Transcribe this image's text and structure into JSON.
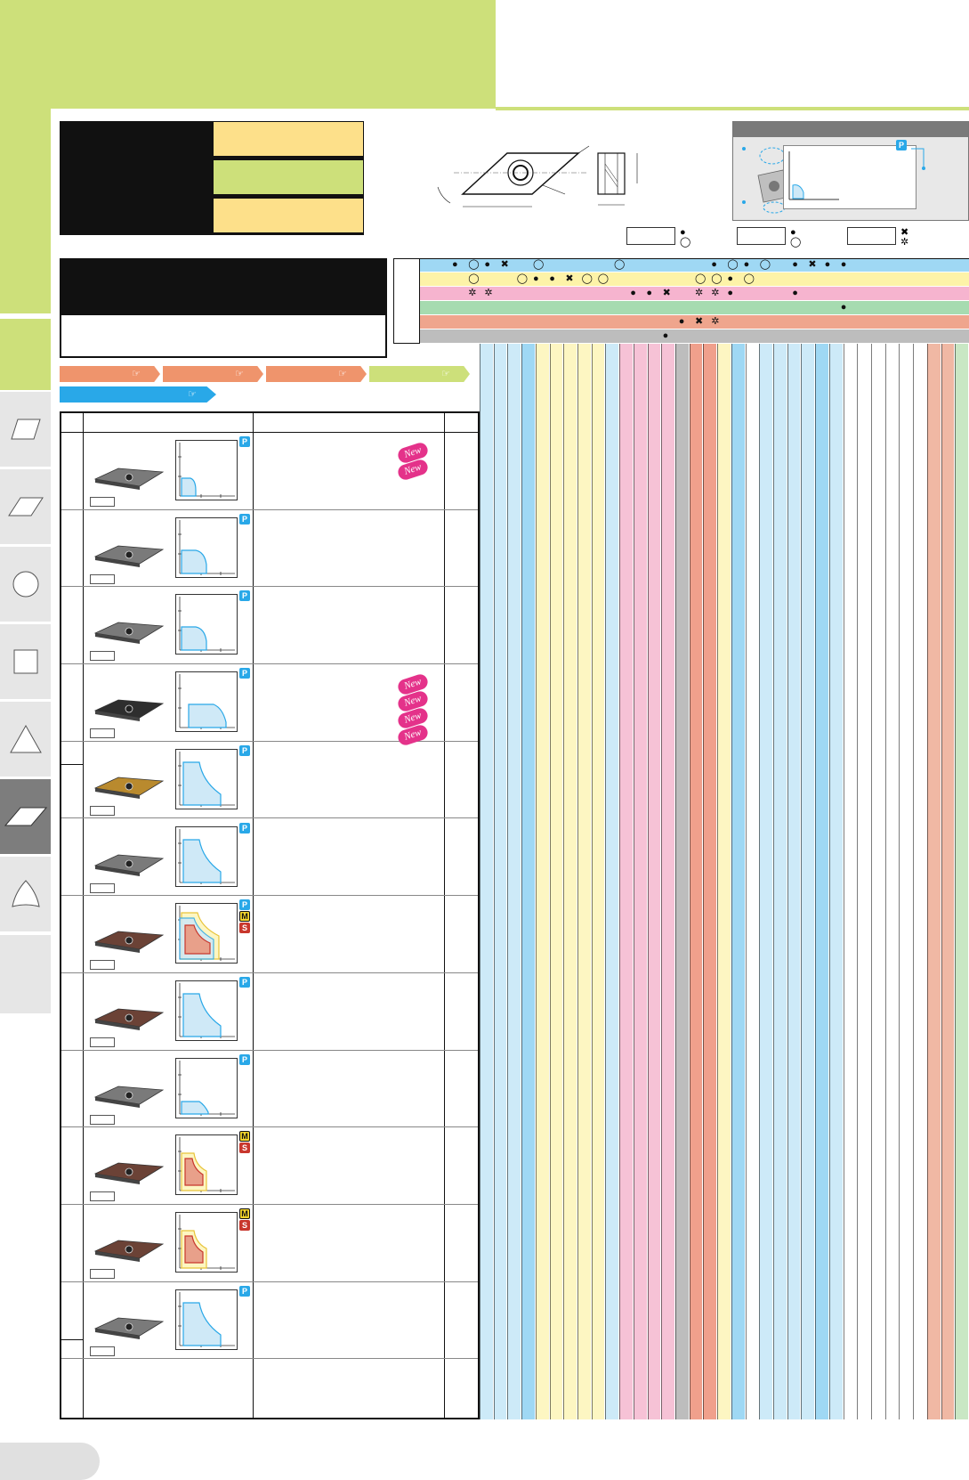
{
  "page": {
    "badges": {
      "p": "P",
      "m": "M",
      "s": "S"
    },
    "new_label": "New",
    "colors": {
      "banner_green": "#cde07a",
      "spec_yellow": "#fde08a",
      "p_blue": "#29a8e8",
      "m_yellow": "#f2d42a",
      "s_red": "#c8372d",
      "new_pink": "#e4328a",
      "arrow_orange": "#ef946c"
    },
    "side_tabs": [
      {
        "name": "parallelogram-tab",
        "icon": "parallelogram-icon",
        "active": false
      },
      {
        "name": "rhombus-80-tab",
        "icon": "rhombus-icon",
        "active": false
      },
      {
        "name": "round-tab",
        "icon": "circle-icon",
        "active": false
      },
      {
        "name": "square-tab",
        "icon": "square-icon",
        "active": false
      },
      {
        "name": "triangle-tab",
        "icon": "triangle-icon",
        "active": false
      },
      {
        "name": "rhombus-35-tab",
        "icon": "rhombus-35-icon",
        "active": true
      },
      {
        "name": "trigon-tab",
        "icon": "trigon-icon",
        "active": false
      }
    ],
    "grid_symbols": [
      [
        "●",
        "◯",
        "●",
        "✖",
        "",
        "◯",
        "",
        "",
        "",
        "",
        "◯",
        "",
        "",
        "",
        "",
        "",
        "●",
        "◯",
        "●",
        "◯",
        "",
        "●",
        "✖",
        "●",
        "●"
      ],
      [
        "",
        "◯",
        "",
        "",
        "◯",
        "●",
        "●",
        "✖",
        "◯",
        "◯",
        "",
        "",
        "",
        "",
        "",
        "◯",
        "◯",
        "●",
        "◯",
        "",
        "",
        "",
        "",
        "",
        ""
      ],
      [
        "",
        "✲",
        "✲",
        "",
        "",
        "",
        "",
        "",
        "",
        "",
        "",
        "●",
        "●",
        "✖",
        "",
        "✲",
        "✲",
        "●",
        "",
        "",
        "",
        "●",
        "",
        "",
        ""
      ],
      [
        "",
        "",
        "",
        "",
        "",
        "",
        "",
        "",
        "",
        "",
        "",
        "",
        "",
        "",
        "",
        "",
        "",
        "",
        "",
        "",
        "",
        "",
        "",
        "",
        "●"
      ],
      [
        "",
        "",
        "",
        "",
        "",
        "",
        "",
        "",
        "",
        "",
        "",
        "",
        "",
        "",
        "●",
        "✖",
        "✲",
        "",
        "",
        "",
        "",
        "",
        "",
        "",
        ""
      ],
      [
        "",
        "",
        "",
        "",
        "",
        "",
        "",
        "",
        "",
        "",
        "",
        "",
        "",
        "●",
        "",
        "",
        "",
        "",
        "",
        "",
        "",
        "",
        "",
        "",
        ""
      ]
    ],
    "rows": [
      {
        "badges": [
          "p"
        ],
        "new_count": 2,
        "curve": "small",
        "insert": "grey"
      },
      {
        "badges": [
          "p"
        ],
        "new_count": 0,
        "curve": "medium",
        "insert": "grey"
      },
      {
        "badges": [
          "p"
        ],
        "new_count": 0,
        "curve": "medium",
        "insert": "grey"
      },
      {
        "badges": [
          "p"
        ],
        "new_count": 4,
        "curve": "wide",
        "insert": "dark"
      },
      {
        "badges": [
          "p"
        ],
        "new_count": 0,
        "curve": "tall",
        "insert": "gold"
      },
      {
        "badges": [
          "p"
        ],
        "new_count": 0,
        "curve": "tall",
        "insert": "grey"
      },
      {
        "badges": [
          "p",
          "m",
          "s"
        ],
        "new_count": 0,
        "curve": "multi",
        "insert": "brown"
      },
      {
        "badges": [
          "p"
        ],
        "new_count": 0,
        "curve": "tall",
        "insert": "brown"
      },
      {
        "badges": [
          "p"
        ],
        "new_count": 0,
        "curve": "low",
        "insert": "grey"
      },
      {
        "badges": [
          "m",
          "s"
        ],
        "new_count": 0,
        "curve": "ms",
        "insert": "brown"
      },
      {
        "badges": [
          "m",
          "s"
        ],
        "new_count": 0,
        "curve": "ms",
        "insert": "brown"
      },
      {
        "badges": [
          "p"
        ],
        "new_count": 0,
        "curve": "tall",
        "insert": "grey"
      }
    ]
  }
}
